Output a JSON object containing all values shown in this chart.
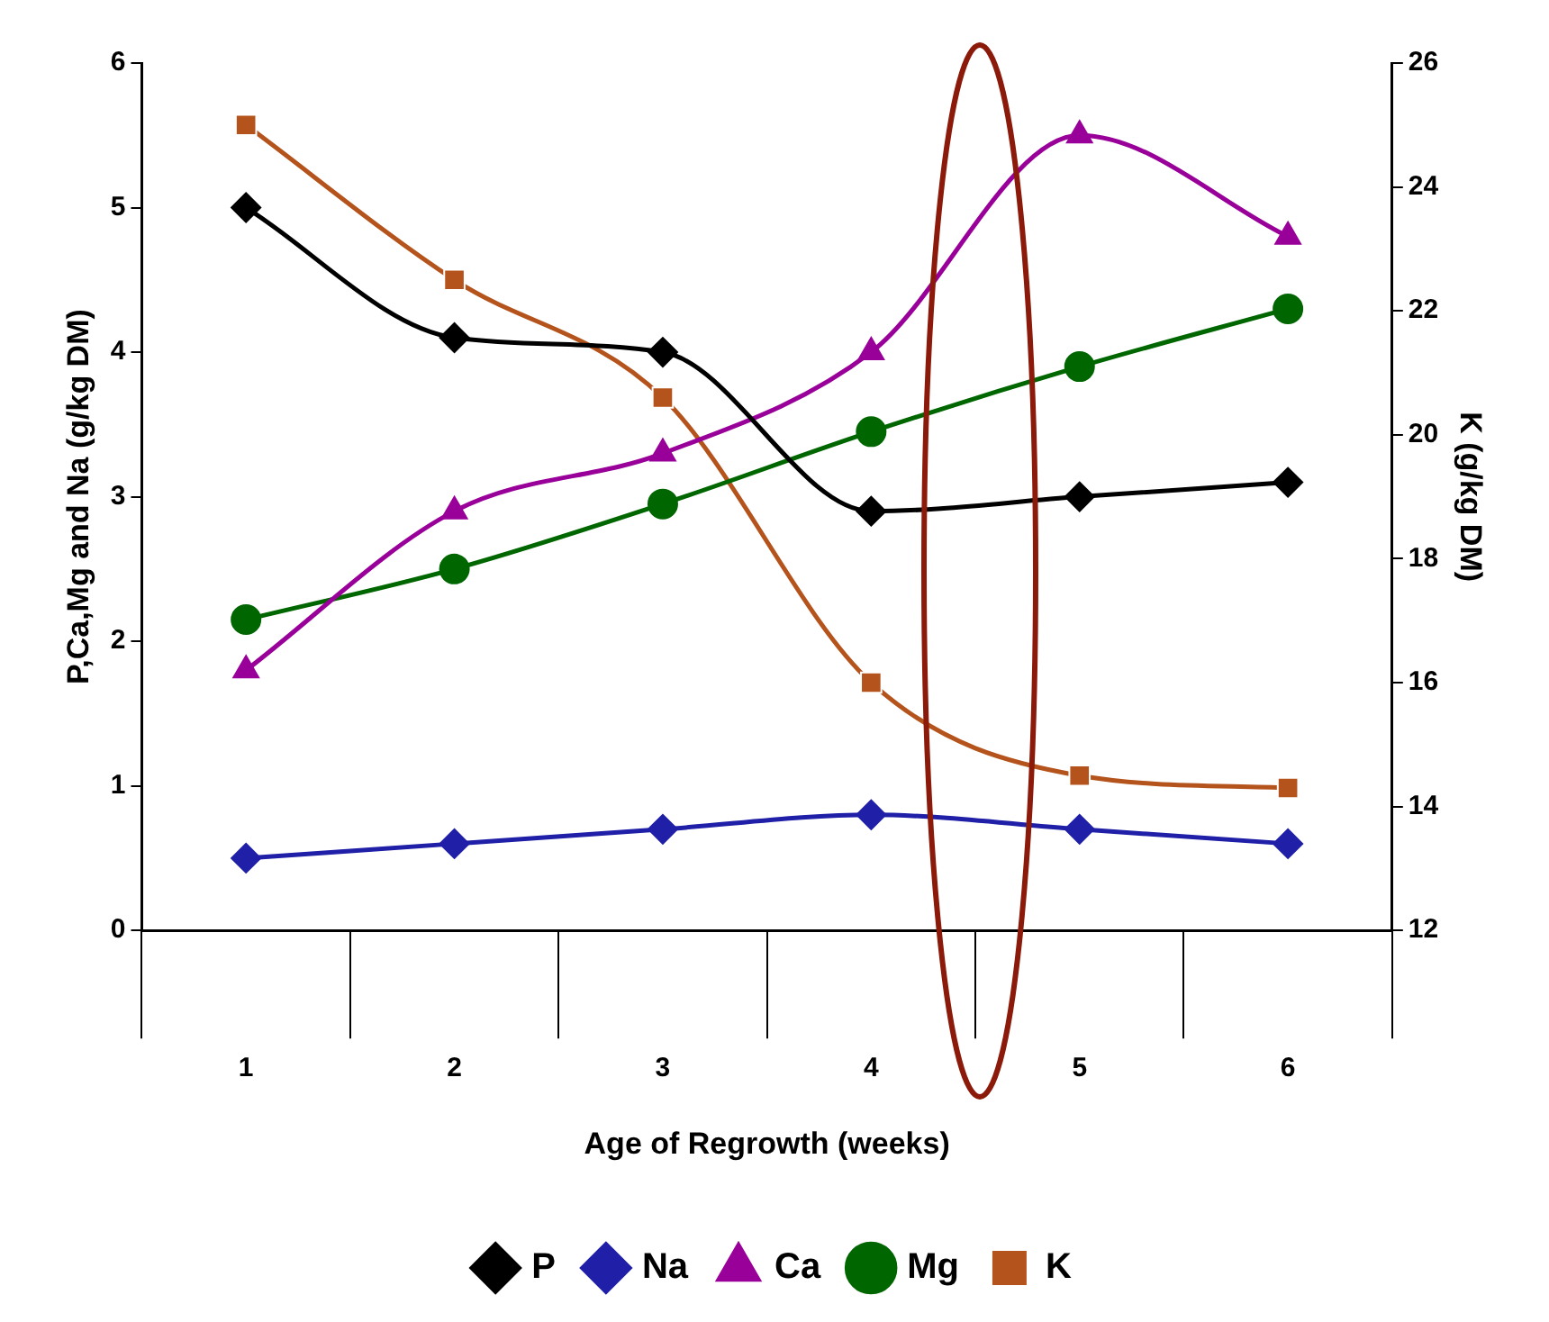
{
  "chart_data": {
    "type": "line",
    "xlabel": "Age of Regrowth (weeks)",
    "ylabel": "P,Ca,Mg and Na (g/kg DM)",
    "y2label": "K (g/kg DM)",
    "categories": [
      "1",
      "2",
      "3",
      "4",
      "5",
      "6"
    ],
    "ylim": [
      0,
      6
    ],
    "yticks": [
      0,
      1,
      2,
      3,
      4,
      5,
      6
    ],
    "y2lim": [
      12,
      26
    ],
    "y2ticks": [
      12,
      14,
      16,
      18,
      20,
      22,
      24,
      26
    ],
    "grid": false,
    "legend": "bottom",
    "series": [
      {
        "name": "P",
        "color": "#000000",
        "marker": "diamond",
        "values": [
          5.0,
          4.1,
          4.0,
          2.9,
          3.0,
          3.1
        ]
      },
      {
        "name": "Na",
        "color": "#1f1fa8",
        "marker": "diamond",
        "values": [
          0.5,
          0.6,
          0.7,
          0.8,
          0.7,
          0.6
        ]
      },
      {
        "name": "Ca",
        "color": "#990099",
        "marker": "triangle",
        "values": [
          1.8,
          2.9,
          3.3,
          4.0,
          5.5,
          4.8
        ]
      },
      {
        "name": "Mg",
        "color": "#006600",
        "marker": "circle",
        "values": [
          2.15,
          2.5,
          2.95,
          3.45,
          3.9,
          4.3
        ]
      },
      {
        "name": "K",
        "color": "#b5531c",
        "marker": "square",
        "axis": "y2",
        "values": [
          25.0,
          22.5,
          20.6,
          16.0,
          14.5,
          14.3
        ]
      }
    ]
  }
}
